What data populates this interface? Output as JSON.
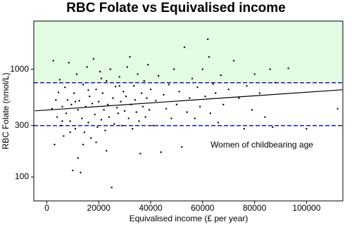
{
  "chart_data": {
    "type": "scatter",
    "title": "RBC Folate vs Equivalised income",
    "x_label": "Equivalised income (£ per year)",
    "y_label": "RBC Folate (nmol/L)",
    "annotation": "Women of childbearing age",
    "y_log": true,
    "color": "#000000",
    "xlim": [
      -5000,
      114000
    ],
    "ylim": [
      60,
      2800
    ],
    "xticks": [
      0,
      20000,
      40000,
      60000,
      80000,
      100000
    ],
    "yticks": [
      100,
      300,
      1000
    ],
    "reference_lines": {
      "values": [
        750,
        300
      ],
      "color": "#1a1aa6",
      "shade_above_color": "#e3fbe3"
    },
    "trend": {
      "x": [
        -4600,
        113800
      ],
      "y": [
        411,
        645
      ],
      "color": "#000000"
    },
    "x": [
      2000,
      2500,
      3000,
      3500,
      4000,
      4500,
      5000,
      5500,
      6000,
      6500,
      7000,
      7500,
      8000,
      8500,
      9000,
      9500,
      10000,
      10500,
      11000,
      11500,
      12000,
      12500,
      13000,
      13500,
      14000,
      14500,
      15000,
      15500,
      16000,
      16500,
      17000,
      17500,
      18000,
      18500,
      19000,
      19500,
      20000,
      20500,
      21000,
      21500,
      22000,
      22500,
      23000,
      23500,
      24000,
      24500,
      25000,
      25500,
      26000,
      26500,
      27000,
      27500,
      28000,
      28500,
      29000,
      29500,
      30000,
      30500,
      31000,
      31500,
      32000,
      32500,
      33000,
      33500,
      34000,
      34500,
      35000,
      35500,
      36000,
      36500,
      37000,
      37500,
      38000,
      38500,
      39000,
      39500,
      40000,
      41000,
      42000,
      43000,
      44000,
      45000,
      46000,
      47000,
      48000,
      49000,
      50000,
      51000,
      52000,
      53000,
      54000,
      55000,
      56000,
      57000,
      58000,
      59000,
      60000,
      61000,
      62000,
      62500,
      63000,
      64000,
      65000,
      66000,
      67000,
      68000,
      70000,
      72000,
      74000,
      76000,
      77000,
      79000,
      80000,
      82000,
      84000,
      86000,
      87000,
      88000,
      93000,
      100000,
      112000,
      12000,
      14000,
      9000,
      19000,
      23000,
      6000,
      28000,
      16000,
      21000,
      11000
    ],
    "y": [
      430,
      1200,
      200,
      520,
      360,
      610,
      800,
      300,
      450,
      240,
      680,
      390,
      520,
      1150,
      330,
      470,
      115,
      600,
      280,
      900,
      420,
      510,
      110,
      350,
      720,
      260,
      450,
      1050,
      320,
      560,
      230,
      480,
      1250,
      380,
      650,
      290,
      500,
      950,
      340,
      600,
      420,
      270,
      780,
      470,
      360,
      1000,
      80,
      540,
      310,
      690,
      440,
      390,
      850,
      500,
      300,
      620,
      410,
      560,
      1050,
      350,
      1300,
      470,
      280,
      700,
      520,
      400,
      900,
      330,
      165,
      600,
      450,
      780,
      360,
      540,
      1100,
      420,
      650,
      300,
      510,
      870,
      170,
      580,
      430,
      720,
      350,
      1000,
      470,
      620,
      190,
      1600,
      400,
      540,
      820,
      350,
      680,
      450,
      1000,
      560,
      1900,
      1300,
      390,
      730,
      600,
      320,
      880,
      470,
      650,
      1200,
      540,
      280,
      700,
      420,
      900,
      600,
      360,
      1000,
      290,
      750,
      1020,
      280,
      430,
      150,
      200,
      260,
      210,
      175,
      330,
      700,
      640,
      820,
      500
    ]
  }
}
